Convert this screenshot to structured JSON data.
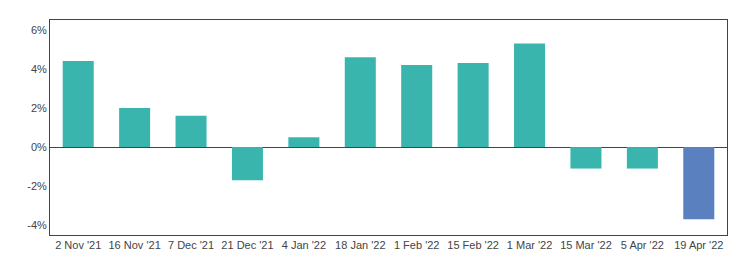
{
  "chart_data": {
    "type": "bar",
    "categories": [
      "2 Nov '21",
      "16 Nov '21",
      "7 Dec '21",
      "21 Dec '21",
      "4 Jan '22",
      "18 Jan '22",
      "1 Feb '22",
      "15 Feb '22",
      "1 Mar '22",
      "15 Mar '22",
      "5 Apr '22",
      "19 Apr '22"
    ],
    "values": [
      4.4,
      2.0,
      1.6,
      -1.7,
      0.5,
      4.6,
      4.2,
      4.3,
      5.3,
      -1.1,
      -1.1,
      -3.7
    ],
    "colors": [
      "#3ab5ae",
      "#3ab5ae",
      "#3ab5ae",
      "#3ab5ae",
      "#3ab5ae",
      "#3ab5ae",
      "#3ab5ae",
      "#3ab5ae",
      "#3ab5ae",
      "#3ab5ae",
      "#3ab5ae",
      "#5b80c0"
    ],
    "ylim": [
      -4.5,
      6.5
    ],
    "yticks": [
      {
        "value": -4,
        "label": "-4%"
      },
      {
        "value": -2,
        "label": "-2%"
      },
      {
        "value": 0,
        "label": "0%"
      },
      {
        "value": 2,
        "label": "2%"
      },
      {
        "value": 4,
        "label": "4%"
      },
      {
        "value": 6,
        "label": "6%"
      }
    ],
    "grid": false
  }
}
